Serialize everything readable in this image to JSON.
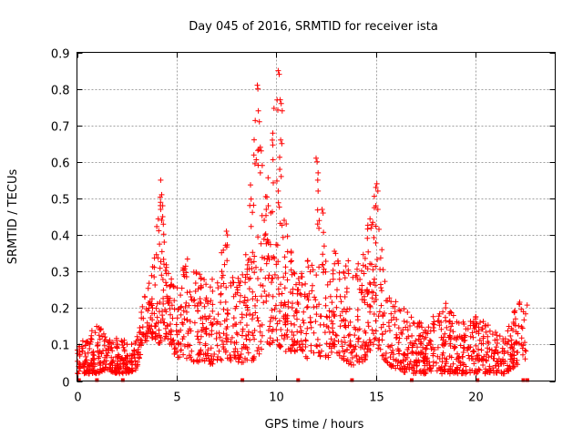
{
  "chart_data": {
    "type": "scatter",
    "title": "Day 045 of 2016, SRMTID for receiver ista",
    "xlabel": "GPS time / hours",
    "ylabel": "SRMTID / TECUs",
    "xlim": [
      0,
      24
    ],
    "ylim": [
      0,
      0.9
    ],
    "x_ticks": [
      0,
      5,
      10,
      15,
      20
    ],
    "x_tick_labels": [
      "0",
      "5",
      "10",
      "15",
      "20"
    ],
    "y_ticks": [
      0,
      0.1,
      0.2,
      0.3,
      0.4,
      0.5,
      0.6,
      0.7,
      0.8,
      0.9
    ],
    "y_tick_labels": [
      "0",
      "0.1",
      "0.2",
      "0.3",
      "0.4",
      "0.5",
      "0.6",
      "0.7",
      "0.8",
      "0.9"
    ],
    "grid": true,
    "series": [
      {
        "name": "SRMTID",
        "color": "#ff0000",
        "marker": "plus",
        "envelope": [
          [
            0.0,
            0.02,
            0.1
          ],
          [
            0.5,
            0.02,
            0.12
          ],
          [
            1.0,
            0.02,
            0.16
          ],
          [
            1.5,
            0.03,
            0.12
          ],
          [
            2.0,
            0.02,
            0.12
          ],
          [
            2.5,
            0.02,
            0.11
          ],
          [
            3.0,
            0.03,
            0.12
          ],
          [
            3.3,
            0.1,
            0.22
          ],
          [
            3.7,
            0.12,
            0.3
          ],
          [
            4.2,
            0.1,
            0.55
          ],
          [
            4.5,
            0.12,
            0.31
          ],
          [
            5.0,
            0.06,
            0.25
          ],
          [
            5.5,
            0.06,
            0.35
          ],
          [
            6.0,
            0.05,
            0.3
          ],
          [
            6.5,
            0.05,
            0.29
          ],
          [
            7.0,
            0.04,
            0.3
          ],
          [
            7.5,
            0.06,
            0.41
          ],
          [
            8.0,
            0.05,
            0.28
          ],
          [
            8.5,
            0.05,
            0.35
          ],
          [
            9.0,
            0.06,
            0.81
          ],
          [
            9.5,
            0.1,
            0.5
          ],
          [
            10.0,
            0.1,
            0.85
          ],
          [
            10.5,
            0.08,
            0.42
          ],
          [
            11.0,
            0.08,
            0.3
          ],
          [
            11.5,
            0.06,
            0.3
          ],
          [
            12.0,
            0.05,
            0.61
          ],
          [
            12.5,
            0.06,
            0.35
          ],
          [
            13.0,
            0.08,
            0.37
          ],
          [
            13.5,
            0.05,
            0.35
          ],
          [
            14.0,
            0.04,
            0.3
          ],
          [
            14.5,
            0.06,
            0.4
          ],
          [
            15.0,
            0.1,
            0.54
          ],
          [
            15.5,
            0.05,
            0.26
          ],
          [
            16.0,
            0.03,
            0.22
          ],
          [
            16.5,
            0.02,
            0.2
          ],
          [
            17.0,
            0.02,
            0.18
          ],
          [
            17.5,
            0.02,
            0.15
          ],
          [
            18.0,
            0.02,
            0.2
          ],
          [
            18.5,
            0.02,
            0.22
          ],
          [
            19.0,
            0.02,
            0.18
          ],
          [
            19.5,
            0.02,
            0.16
          ],
          [
            20.0,
            0.02,
            0.18
          ],
          [
            20.5,
            0.02,
            0.16
          ],
          [
            21.0,
            0.02,
            0.14
          ],
          [
            21.5,
            0.02,
            0.13
          ],
          [
            22.0,
            0.04,
            0.2
          ],
          [
            22.5,
            0.06,
            0.24
          ],
          [
            22.6,
            0.07,
            0.22
          ]
        ],
        "outlier_points": [
          [
            9.05,
            0.81
          ],
          [
            9.08,
            0.8
          ],
          [
            9.1,
            0.74
          ],
          [
            9.15,
            0.71
          ],
          [
            9.2,
            0.64
          ],
          [
            9.25,
            0.63
          ],
          [
            9.3,
            0.59
          ],
          [
            9.2,
            0.57
          ],
          [
            10.1,
            0.85
          ],
          [
            10.15,
            0.84
          ],
          [
            10.2,
            0.77
          ],
          [
            10.25,
            0.76
          ],
          [
            10.3,
            0.74
          ],
          [
            10.22,
            0.66
          ],
          [
            10.28,
            0.65
          ],
          [
            10.25,
            0.56
          ],
          [
            10.1,
            0.52
          ],
          [
            12.0,
            0.61
          ],
          [
            12.05,
            0.6
          ],
          [
            12.1,
            0.57
          ],
          [
            12.08,
            0.55
          ],
          [
            12.1,
            0.52
          ],
          [
            12.3,
            0.47
          ],
          [
            12.35,
            0.46
          ],
          [
            4.2,
            0.55
          ],
          [
            4.25,
            0.51
          ],
          [
            4.3,
            0.48
          ],
          [
            4.2,
            0.47
          ],
          [
            4.3,
            0.45
          ],
          [
            4.25,
            0.44
          ],
          [
            15.05,
            0.54
          ],
          [
            15.0,
            0.53
          ],
          [
            15.1,
            0.52
          ],
          [
            15.0,
            0.48
          ],
          [
            15.1,
            0.47
          ],
          [
            7.5,
            0.41
          ],
          [
            7.55,
            0.4
          ],
          [
            9.6,
            0.48
          ],
          [
            9.5,
            0.47
          ],
          [
            9.4,
            0.44
          ],
          [
            10.5,
            0.43
          ],
          [
            10.4,
            0.44
          ]
        ],
        "zero_points": [
          0.1,
          1.0,
          2.3,
          8.3,
          11.1,
          13.8,
          16.8,
          20.1,
          22.4,
          22.6
        ]
      }
    ]
  }
}
